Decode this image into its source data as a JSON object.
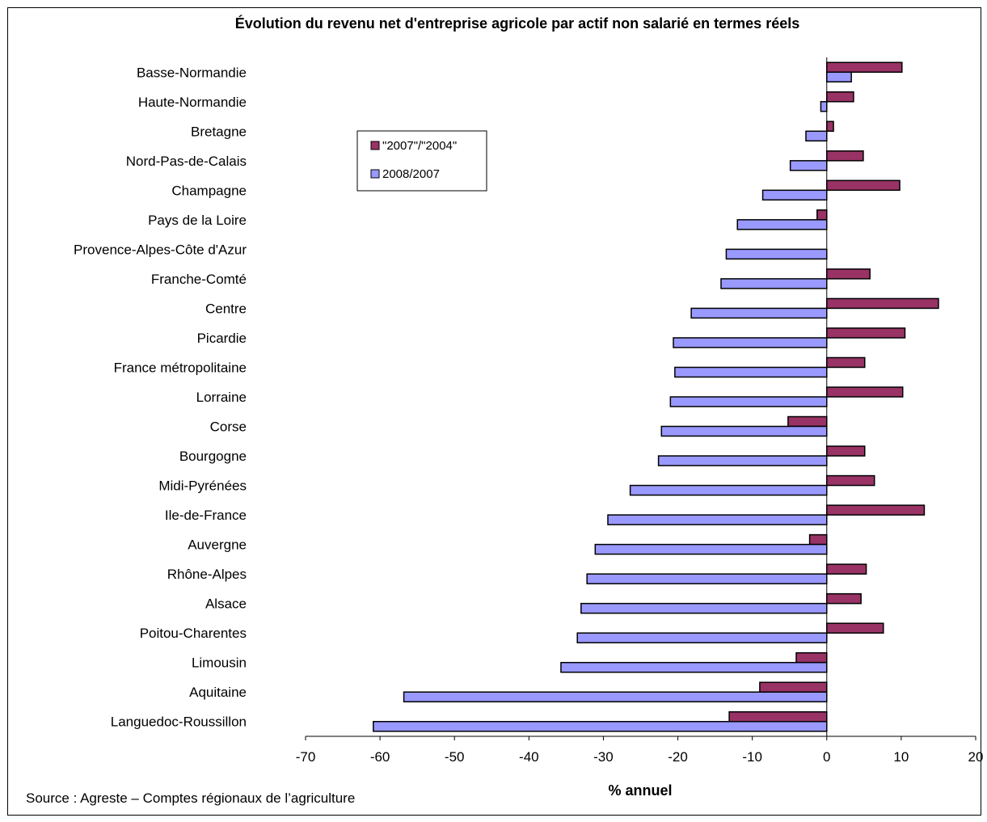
{
  "chart_data": {
    "type": "bar",
    "orientation": "horizontal",
    "title": "Évolution du revenu net d'entreprise agricole par actif non salarié en termes réels",
    "xlabel": "% annuel",
    "ylabel": "",
    "xlim": [
      -70,
      20
    ],
    "xticks": [
      -70,
      -60,
      -50,
      -40,
      -30,
      -20,
      -10,
      0,
      10,
      20
    ],
    "grid": false,
    "legend_position": "upper-middle",
    "categories": [
      "Basse-Normandie",
      "Haute-Normandie",
      "Bretagne",
      "Nord-Pas-de-Calais",
      "Champagne",
      "Pays de la Loire",
      "Provence-Alpes-Côte d'Azur",
      "Franche-Comté",
      "Centre",
      "Picardie",
      "France métropolitaine",
      "Lorraine",
      "Corse",
      "Bourgogne",
      "Midi-Pyrénées",
      "Ile-de-France",
      "Auvergne",
      "Rhône-Alpes",
      "Alsace",
      "Poitou-Charentes",
      "Limousin",
      "Aquitaine",
      "Languedoc-Roussillon"
    ],
    "series": [
      {
        "name": "\"2007\"/\"2004\"",
        "color": "#993366",
        "values": [
          10.1,
          3.6,
          0.9,
          4.9,
          9.8,
          -1.3,
          0.0,
          5.8,
          15.0,
          10.5,
          5.1,
          10.2,
          -5.2,
          5.1,
          6.4,
          13.1,
          -2.3,
          5.3,
          4.6,
          7.6,
          -4.1,
          -9.0,
          -13.1
        ]
      },
      {
        "name": "2008/2007",
        "color": "#9999ff",
        "values": [
          3.3,
          -0.8,
          -2.8,
          -4.9,
          -8.6,
          -12.0,
          -13.5,
          -14.2,
          -18.2,
          -20.6,
          -20.4,
          -21.0,
          -22.2,
          -22.6,
          -26.4,
          -29.4,
          -31.1,
          -32.2,
          -33.0,
          -33.5,
          -35.7,
          -56.8,
          -60.9
        ]
      }
    ]
  },
  "footer": {
    "source": "Source : Agreste – Comptes régionaux de l’agriculture"
  }
}
